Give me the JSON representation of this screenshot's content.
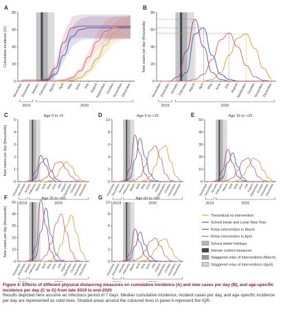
{
  "figure": {
    "panels": [
      {
        "label": "A",
        "title": "",
        "ylabel": "Cumulative incidence (%)",
        "yticks": [
          "0",
          "20",
          "40",
          "60",
          "80"
        ]
      },
      {
        "label": "B",
        "title": "",
        "ylabel": "New cases per day (thousands)",
        "yticks": [
          "0",
          "20",
          "40",
          "60",
          "80"
        ]
      },
      {
        "label": "C",
        "title": "Age 0 to <5",
        "ylabel": "New cases per day (thousands)",
        "yticks": [
          "0",
          "1",
          "2",
          "3",
          "4",
          "5"
        ]
      },
      {
        "label": "D",
        "title": "Age 5 to <15",
        "ylabel": "",
        "yticks": [
          "0",
          "2",
          "4",
          "6",
          "8",
          "10"
        ]
      },
      {
        "label": "E",
        "title": "Age 15 to <25",
        "ylabel": "",
        "yticks": [
          "0",
          "10",
          "20",
          "30",
          "40",
          "50"
        ]
      },
      {
        "label": "F",
        "title": "Age 25 to <60",
        "ylabel": "New cases per day (thousands)",
        "yticks": [
          "0",
          "10",
          "20",
          "30",
          "40",
          "50"
        ]
      },
      {
        "label": "G",
        "title": "Age 60 to <80",
        "ylabel": "",
        "yticks": [
          "0",
          "2",
          "4",
          "6",
          "8",
          "10"
        ]
      }
    ],
    "months": [
      "November",
      "December",
      "January",
      "February",
      "March",
      "April",
      "May",
      "June",
      "July",
      "August",
      "September",
      "October",
      "November",
      "December"
    ],
    "years": [
      "2019",
      "2020"
    ],
    "legend": [
      {
        "label": "Theoretical no intervention",
        "kind": "line",
        "color": "#d8a23e"
      },
      {
        "label": "School break and Lunar New Year",
        "kind": "line",
        "color": "#4d5fa6"
      },
      {
        "label": "Relax intervention in March",
        "kind": "line",
        "color": "#a24a78"
      },
      {
        "label": "Relax intervention in April",
        "kind": "line",
        "color": "#d36a6a"
      },
      {
        "label": "School winter holidays",
        "kind": "box",
        "color": "#b6b6b6"
      },
      {
        "label": "Intense control measures",
        "kind": "box",
        "color": "#3d4750"
      },
      {
        "label": "Staggered relax of interventions (March)",
        "kind": "box",
        "color": "#9a9a9a"
      },
      {
        "label": "Staggered relax of interventions (April)",
        "kind": "box",
        "color": "#cfcfcf"
      }
    ]
  },
  "caption": {
    "title": "Figure 4: Effects of different physical distancing measures on cumulative incidence (A) and new cases per day (B), and age-specific incidence per day (C to G) from late 2019 to end-2020",
    "body": "Results depicted here assume an infectious period of 7 days. Median cumulative incidence, incident cases per day, and age-specific incidence per day are represented as solid lines. Shaded areas around the coloured lines in panel A represent the IQR."
  },
  "chart_data": [
    {
      "type": "line",
      "panel": "A",
      "ylim": [
        0,
        80
      ],
      "xlabel": "",
      "ylabel": "Cumulative incidence (%)",
      "x": [
        "November",
        "December",
        "January",
        "February",
        "March",
        "April",
        "May",
        "June",
        "July",
        "August",
        "September",
        "October",
        "November",
        "December"
      ],
      "series": [
        {
          "color": "#d8a23e",
          "values": [
            0,
            0,
            0,
            0,
            0,
            0,
            1,
            4,
            12,
            26,
            42,
            55,
            61,
            63
          ]
        },
        {
          "color": "#4d5fa6",
          "values": [
            0,
            0,
            0,
            1,
            8,
            30,
            52,
            60,
            62,
            62,
            62,
            62,
            62,
            62
          ]
        },
        {
          "color": "#a24a78",
          "values": [
            0,
            0,
            0,
            2,
            15,
            45,
            62,
            64,
            64,
            64,
            64,
            64,
            64,
            64
          ]
        },
        {
          "color": "#d36a6a",
          "values": [
            0,
            0,
            0,
            0,
            0,
            1,
            4,
            12,
            28,
            46,
            58,
            62,
            63,
            63
          ]
        }
      ]
    },
    {
      "type": "line",
      "panel": "B",
      "ylim": [
        0,
        80
      ],
      "xlabel": "",
      "ylabel": "New cases per day (thousands)",
      "x": [
        "November",
        "December",
        "January",
        "February",
        "March",
        "April",
        "May",
        "June",
        "July",
        "August",
        "September",
        "October",
        "November",
        "December"
      ],
      "series": [
        {
          "color": "#d8a23e",
          "values": [
            0,
            0,
            0,
            0,
            0,
            0,
            2,
            10,
            30,
            50,
            55,
            38,
            15,
            3
          ]
        },
        {
          "color": "#4d5fa6",
          "values": [
            0,
            0,
            0,
            10,
            55,
            62,
            30,
            8,
            2,
            0,
            0,
            0,
            0,
            0
          ]
        },
        {
          "color": "#a24a78",
          "values": [
            0,
            0,
            5,
            35,
            72,
            40,
            10,
            2,
            0,
            0,
            0,
            0,
            0,
            0
          ]
        },
        {
          "color": "#d36a6a",
          "values": [
            0,
            0,
            0,
            0,
            2,
            8,
            25,
            48,
            56,
            40,
            18,
            5,
            1,
            0
          ]
        }
      ]
    },
    {
      "type": "line",
      "panel": "C",
      "ylim": [
        0,
        5
      ],
      "xlabel": "",
      "ylabel": "New cases per day (thousands)",
      "x": [
        "November",
        "December",
        "January",
        "February",
        "March",
        "April",
        "May",
        "June",
        "July",
        "August",
        "September",
        "October",
        "November",
        "December"
      ],
      "series": [
        {
          "color": "#d8a23e",
          "values": [
            0,
            0,
            0,
            0,
            0,
            0,
            0.1,
            0.4,
            1.1,
            1.6,
            1.2,
            0.5,
            0.1,
            0
          ]
        },
        {
          "color": "#4d5fa6",
          "values": [
            0,
            0,
            0,
            0.3,
            1.5,
            1.9,
            0.9,
            0.2,
            0,
            0,
            0,
            0,
            0,
            0
          ]
        },
        {
          "color": "#a24a78",
          "values": [
            0,
            0,
            0.1,
            0.8,
            2.1,
            1.3,
            0.3,
            0,
            0,
            0,
            0,
            0,
            0,
            0
          ]
        },
        {
          "color": "#d36a6a",
          "values": [
            0,
            0,
            0,
            0,
            0.1,
            0.3,
            0.8,
            1.5,
            1.6,
            1.0,
            0.4,
            0.1,
            0,
            0
          ]
        }
      ]
    },
    {
      "type": "line",
      "panel": "D",
      "ylim": [
        0,
        10
      ],
      "xlabel": "",
      "ylabel": "",
      "x": [
        "November",
        "December",
        "January",
        "February",
        "March",
        "April",
        "May",
        "June",
        "July",
        "August",
        "September",
        "October",
        "November",
        "December"
      ],
      "series": [
        {
          "color": "#d8a23e",
          "values": [
            0,
            0,
            0,
            0,
            0,
            0,
            0.2,
            0.8,
            2.5,
            5.2,
            5.8,
            3.2,
            0.9,
            0.1
          ]
        },
        {
          "color": "#4d5fa6",
          "values": [
            0,
            0,
            0,
            0.5,
            3.5,
            7.0,
            4.0,
            1.2,
            0.2,
            0,
            0,
            0,
            0,
            0
          ]
        },
        {
          "color": "#a24a78",
          "values": [
            0,
            0,
            0.2,
            2.0,
            7.5,
            4.5,
            1.2,
            0.2,
            0,
            0,
            0,
            0,
            0,
            0
          ]
        },
        {
          "color": "#d36a6a",
          "values": [
            0,
            0,
            0,
            0,
            0.2,
            0.8,
            2.5,
            5.0,
            5.8,
            3.8,
            1.2,
            0.2,
            0,
            0
          ]
        }
      ]
    },
    {
      "type": "line",
      "panel": "E",
      "ylim": [
        0,
        50
      ],
      "xlabel": "",
      "ylabel": "",
      "x": [
        "November",
        "December",
        "January",
        "February",
        "March",
        "April",
        "May",
        "June",
        "July",
        "August",
        "September",
        "October",
        "November",
        "December"
      ],
      "series": [
        {
          "color": "#d8a23e",
          "values": [
            0,
            0,
            0,
            0,
            0,
            0,
            1,
            5,
            12,
            19,
            17,
            9,
            3,
            0
          ]
        },
        {
          "color": "#4d5fa6",
          "values": [
            0,
            0,
            0,
            3,
            15,
            23,
            12,
            3,
            0,
            0,
            0,
            0,
            0,
            0
          ]
        },
        {
          "color": "#a24a78",
          "values": [
            0,
            0,
            1,
            9,
            26,
            15,
            4,
            1,
            0,
            0,
            0,
            0,
            0,
            0
          ]
        },
        {
          "color": "#d36a6a",
          "values": [
            0,
            0,
            0,
            0,
            1,
            3,
            9,
            17,
            19,
            12,
            4,
            1,
            0,
            0
          ]
        }
      ]
    },
    {
      "type": "line",
      "panel": "F",
      "ylim": [
        0,
        50
      ],
      "xlabel": "",
      "ylabel": "New cases per day (thousands)",
      "x": [
        "November",
        "December",
        "January",
        "February",
        "March",
        "April",
        "May",
        "June",
        "July",
        "August",
        "September",
        "October",
        "November",
        "December"
      ],
      "series": [
        {
          "color": "#d8a23e",
          "values": [
            0,
            0,
            0,
            0,
            0,
            0,
            1,
            5,
            14,
            30,
            39,
            24,
            8,
            1
          ]
        },
        {
          "color": "#4d5fa6",
          "values": [
            0,
            0,
            0,
            4,
            25,
            45,
            22,
            6,
            1,
            0,
            0,
            0,
            0,
            0
          ]
        },
        {
          "color": "#a24a78",
          "values": [
            0,
            0,
            1,
            12,
            52,
            30,
            8,
            1,
            0,
            0,
            0,
            0,
            0,
            0
          ]
        },
        {
          "color": "#d36a6a",
          "values": [
            0,
            0,
            0,
            0,
            1,
            5,
            15,
            32,
            40,
            25,
            8,
            1,
            0,
            0
          ]
        }
      ]
    },
    {
      "type": "line",
      "panel": "G",
      "ylim": [
        0,
        10
      ],
      "xlabel": "",
      "ylabel": "",
      "x": [
        "November",
        "December",
        "January",
        "February",
        "March",
        "April",
        "May",
        "June",
        "July",
        "August",
        "September",
        "October",
        "November",
        "December"
      ],
      "series": [
        {
          "color": "#d8a23e",
          "values": [
            0,
            0,
            0,
            0,
            0,
            0,
            0.2,
            0.8,
            2.0,
            3.5,
            3.8,
            2.2,
            0.7,
            0.1
          ]
        },
        {
          "color": "#4d5fa6",
          "values": [
            0,
            0,
            0,
            0.3,
            2.5,
            5.0,
            2.8,
            0.8,
            0.1,
            0,
            0,
            0,
            0,
            0
          ]
        },
        {
          "color": "#a24a78",
          "values": [
            0,
            0,
            0.1,
            1.2,
            5.5,
            3.2,
            0.9,
            0.1,
            0,
            0,
            0,
            0,
            0,
            0
          ]
        },
        {
          "color": "#d36a6a",
          "values": [
            0,
            0,
            0,
            0,
            0.2,
            0.6,
            1.8,
            3.4,
            3.9,
            2.6,
            0.9,
            0.1,
            0,
            0
          ]
        }
      ]
    }
  ]
}
